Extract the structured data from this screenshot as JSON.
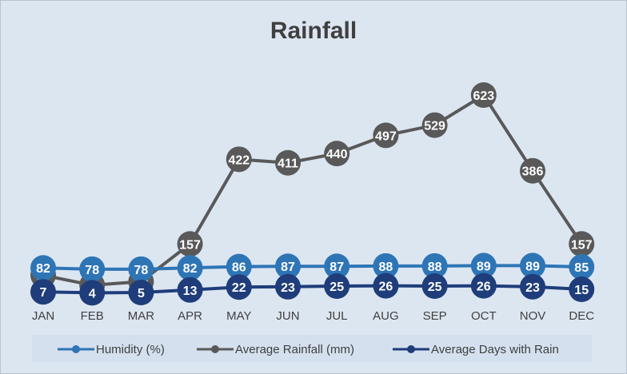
{
  "chart_data": {
    "type": "line",
    "title": "Rainfall",
    "categories": [
      "JAN",
      "FEB",
      "MAR",
      "APR",
      "MAY",
      "JUN",
      "JUL",
      "AUG",
      "SEP",
      "OCT",
      "NOV",
      "DEC"
    ],
    "series": [
      {
        "name": "Humidity (%)",
        "color": "#2e75b6",
        "values": [
          82,
          78,
          78,
          82,
          86,
          87,
          87,
          88,
          88,
          89,
          89,
          85
        ]
      },
      {
        "name": "Average Rainfall (mm)",
        "color": "#595959",
        "values": [
          59,
          28,
          39,
          157,
          422,
          411,
          440,
          497,
          529,
          623,
          386,
          157
        ]
      },
      {
        "name": "Average Days with Rain",
        "color": "#1f3d7a",
        "values": [
          7,
          4,
          5,
          13,
          22,
          23,
          25,
          26,
          25,
          26,
          23,
          15
        ]
      }
    ],
    "legend_position": "bottom",
    "grid": false,
    "data_labels": true
  }
}
